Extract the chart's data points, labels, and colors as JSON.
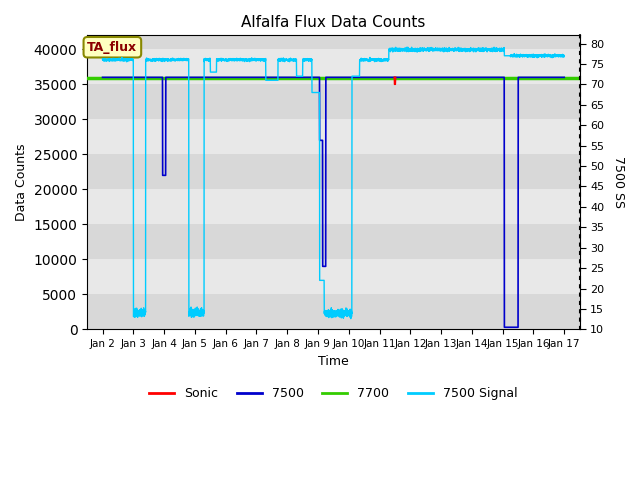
{
  "title": "Alfalfa Flux Data Counts",
  "xlabel": "Time",
  "ylabel": "Data Counts",
  "ylabel_right": "7500 SS",
  "annotation": "TA_flux",
  "xlim": [
    1.0,
    16.5
  ],
  "ylim_left": [
    0,
    42000
  ],
  "ylim_right": [
    10,
    82
  ],
  "yticks_left": [
    0,
    5000,
    10000,
    15000,
    20000,
    25000,
    30000,
    35000,
    40000
  ],
  "yticks_right": [
    10,
    15,
    20,
    25,
    30,
    35,
    40,
    45,
    50,
    55,
    60,
    65,
    70,
    75,
    80
  ],
  "xtick_labels": [
    "Jan 2",
    "Jan 3",
    "Jan 4",
    "Jan 5",
    "Jan 6",
    "Jan 7",
    "Jan 8",
    "Jan 9",
    "Jan 10",
    "Jan 11",
    "Jan 12",
    "Jan 13",
    "Jan 14",
    "Jan 15",
    "Jan 16",
    "Jan 17"
  ],
  "xtick_positions": [
    1,
    2,
    3,
    4,
    5,
    6,
    7,
    8,
    9,
    10,
    11,
    12,
    13,
    14,
    15,
    16
  ],
  "color_sonic": "#ff0000",
  "color_7500": "#0000cc",
  "color_7700": "#33cc00",
  "color_signal": "#00ccff",
  "color_bg_dark": "#d8d8d8",
  "color_bg_light": "#e8e8e8",
  "line_7700_value": 35900,
  "legend_labels": [
    "Sonic",
    "7500",
    "7700",
    "7500 Signal"
  ],
  "legend_colors": [
    "#ff0000",
    "#0000cc",
    "#33cc00",
    "#00ccff"
  ],
  "figsize": [
    6.4,
    4.8
  ],
  "dpi": 100
}
